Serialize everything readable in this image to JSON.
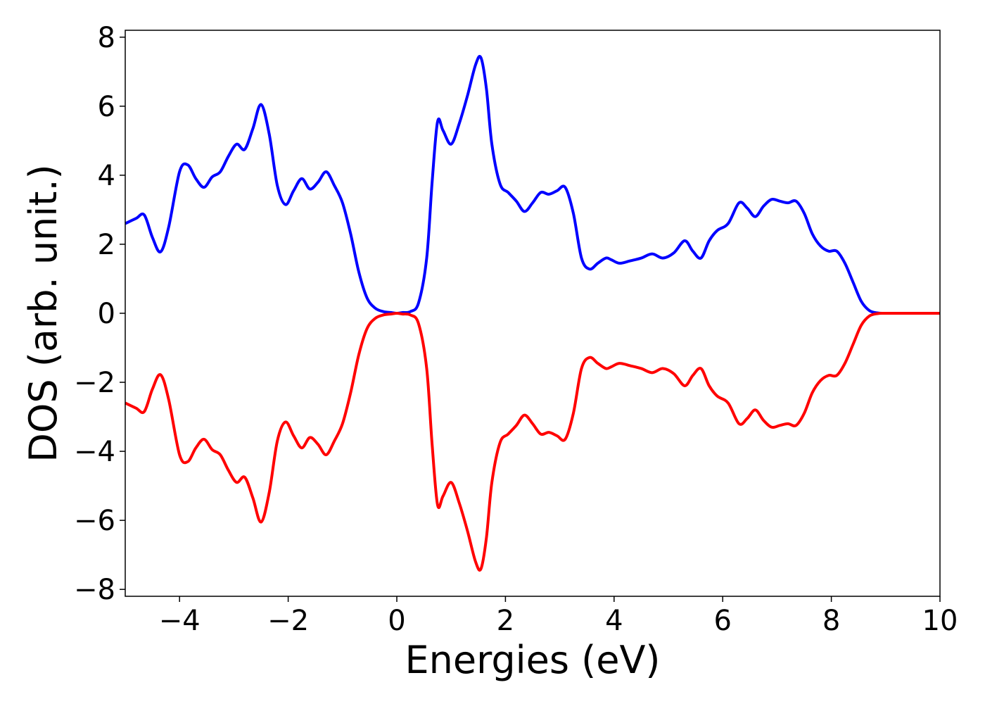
{
  "chart_data": {
    "type": "line",
    "title": "",
    "xlabel": "Energies (eV)",
    "ylabel": "DOS (arb. unit.)",
    "xlim": [
      -5,
      10
    ],
    "ylim": [
      -8.2,
      8.2
    ],
    "xticks": [
      -4,
      -2,
      0,
      2,
      4,
      6,
      8,
      10
    ],
    "xtick_labels": [
      "−4",
      "−2",
      "0",
      "2",
      "4",
      "6",
      "8",
      "10"
    ],
    "yticks": [
      8,
      6,
      4,
      2,
      0,
      -2,
      -4,
      -6,
      -8
    ],
    "ytick_labels": [
      "8",
      "6",
      "4",
      "2",
      "0",
      "−2",
      "−4",
      "−6",
      "−8"
    ],
    "grid": false,
    "legend": "none",
    "series": [
      {
        "color": "#0000ff",
        "x": [
          -5.0,
          -4.8,
          -4.65,
          -4.5,
          -4.35,
          -4.2,
          -4.0,
          -3.85,
          -3.7,
          -3.55,
          -3.4,
          -3.25,
          -3.1,
          -2.95,
          -2.8,
          -2.65,
          -2.5,
          -2.35,
          -2.2,
          -2.05,
          -1.9,
          -1.75,
          -1.6,
          -1.45,
          -1.3,
          -1.15,
          -1.0,
          -0.85,
          -0.7,
          -0.55,
          -0.4,
          -0.25,
          -0.1,
          0.0,
          0.1,
          0.25,
          0.4,
          0.55,
          0.65,
          0.75,
          0.85,
          1.0,
          1.15,
          1.3,
          1.45,
          1.55,
          1.65,
          1.75,
          1.9,
          2.05,
          2.2,
          2.35,
          2.5,
          2.65,
          2.8,
          2.95,
          3.1,
          3.25,
          3.4,
          3.55,
          3.7,
          3.85,
          3.95,
          4.1,
          4.3,
          4.5,
          4.7,
          4.9,
          5.1,
          5.3,
          5.45,
          5.6,
          5.75,
          5.9,
          6.1,
          6.3,
          6.45,
          6.6,
          6.75,
          6.9,
          7.05,
          7.2,
          7.35,
          7.5,
          7.65,
          7.8,
          7.95,
          8.1,
          8.25,
          8.4,
          8.55,
          8.7,
          8.85,
          9.0,
          9.5,
          10.0
        ],
        "y": [
          2.6,
          2.75,
          2.85,
          2.2,
          1.78,
          2.5,
          4.1,
          4.3,
          3.9,
          3.65,
          3.95,
          4.1,
          4.55,
          4.9,
          4.75,
          5.35,
          6.05,
          5.2,
          3.7,
          3.15,
          3.55,
          3.9,
          3.6,
          3.8,
          4.1,
          3.7,
          3.2,
          2.3,
          1.2,
          0.45,
          0.15,
          0.05,
          0.02,
          0.0,
          0.02,
          0.05,
          0.3,
          1.6,
          3.8,
          5.55,
          5.3,
          4.9,
          5.5,
          6.3,
          7.2,
          7.4,
          6.5,
          4.9,
          3.75,
          3.5,
          3.25,
          2.95,
          3.2,
          3.5,
          3.45,
          3.55,
          3.65,
          2.9,
          1.6,
          1.28,
          1.45,
          1.6,
          1.55,
          1.45,
          1.52,
          1.6,
          1.72,
          1.6,
          1.75,
          2.1,
          1.8,
          1.6,
          2.1,
          2.4,
          2.6,
          3.2,
          3.05,
          2.8,
          3.1,
          3.3,
          3.25,
          3.2,
          3.25,
          2.9,
          2.3,
          1.95,
          1.8,
          1.8,
          1.45,
          0.9,
          0.35,
          0.08,
          0.01,
          0.0,
          0.0,
          0.0
        ]
      },
      {
        "color": "#ff0000",
        "x": [
          -5.0,
          -4.8,
          -4.65,
          -4.5,
          -4.35,
          -4.2,
          -4.0,
          -3.85,
          -3.7,
          -3.55,
          -3.4,
          -3.25,
          -3.1,
          -2.95,
          -2.8,
          -2.65,
          -2.5,
          -2.35,
          -2.2,
          -2.05,
          -1.9,
          -1.75,
          -1.6,
          -1.45,
          -1.3,
          -1.15,
          -1.0,
          -0.85,
          -0.7,
          -0.55,
          -0.4,
          -0.25,
          -0.1,
          0.0,
          0.1,
          0.25,
          0.4,
          0.55,
          0.65,
          0.75,
          0.85,
          1.0,
          1.15,
          1.3,
          1.45,
          1.55,
          1.65,
          1.75,
          1.9,
          2.05,
          2.2,
          2.35,
          2.5,
          2.65,
          2.8,
          2.95,
          3.1,
          3.25,
          3.4,
          3.55,
          3.7,
          3.85,
          3.95,
          4.1,
          4.3,
          4.5,
          4.7,
          4.9,
          5.1,
          5.3,
          5.45,
          5.6,
          5.75,
          5.9,
          6.1,
          6.3,
          6.45,
          6.6,
          6.75,
          6.9,
          7.05,
          7.2,
          7.35,
          7.5,
          7.65,
          7.8,
          7.95,
          8.1,
          8.25,
          8.4,
          8.55,
          8.7,
          8.85,
          9.0,
          9.5,
          10.0
        ],
        "y": [
          -2.6,
          -2.75,
          -2.85,
          -2.2,
          -1.78,
          -2.5,
          -4.1,
          -4.3,
          -3.9,
          -3.65,
          -3.95,
          -4.1,
          -4.55,
          -4.9,
          -4.75,
          -5.35,
          -6.05,
          -5.2,
          -3.7,
          -3.15,
          -3.55,
          -3.9,
          -3.6,
          -3.8,
          -4.1,
          -3.7,
          -3.2,
          -2.3,
          -1.2,
          -0.45,
          -0.15,
          -0.05,
          -0.02,
          0.0,
          -0.02,
          -0.05,
          -0.3,
          -1.6,
          -3.8,
          -5.55,
          -5.3,
          -4.9,
          -5.5,
          -6.3,
          -7.2,
          -7.4,
          -6.5,
          -4.9,
          -3.75,
          -3.5,
          -3.25,
          -2.95,
          -3.2,
          -3.5,
          -3.45,
          -3.55,
          -3.65,
          -2.9,
          -1.6,
          -1.28,
          -1.45,
          -1.6,
          -1.55,
          -1.45,
          -1.52,
          -1.6,
          -1.72,
          -1.6,
          -1.75,
          -2.1,
          -1.8,
          -1.6,
          -2.1,
          -2.4,
          -2.6,
          -3.2,
          -3.05,
          -2.8,
          -3.1,
          -3.3,
          -3.25,
          -3.2,
          -3.25,
          -2.9,
          -2.3,
          -1.95,
          -1.8,
          -1.8,
          -1.45,
          -0.9,
          -0.35,
          -0.08,
          -0.01,
          0.0,
          0.0,
          0.0
        ]
      }
    ]
  }
}
